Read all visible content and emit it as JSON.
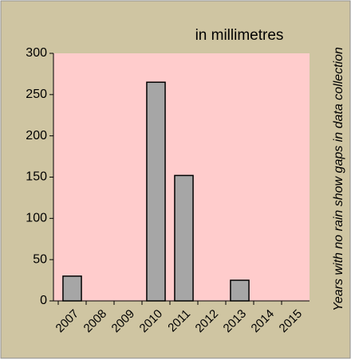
{
  "chart_data": {
    "type": "bar",
    "title": "in millimetres",
    "annotation": "Years with no rain show gaps in data collection",
    "categories": [
      "2007",
      "2008",
      "2009",
      "2010",
      "2011",
      "2012",
      "2013",
      "2014",
      "2015"
    ],
    "values": [
      30,
      0,
      0,
      265,
      152,
      0,
      25,
      0,
      0
    ],
    "color": "#a6a6a6",
    "ylim": [
      0,
      300
    ],
    "yticks": [
      0,
      50,
      100,
      150,
      200,
      250,
      300
    ],
    "grid": false
  }
}
